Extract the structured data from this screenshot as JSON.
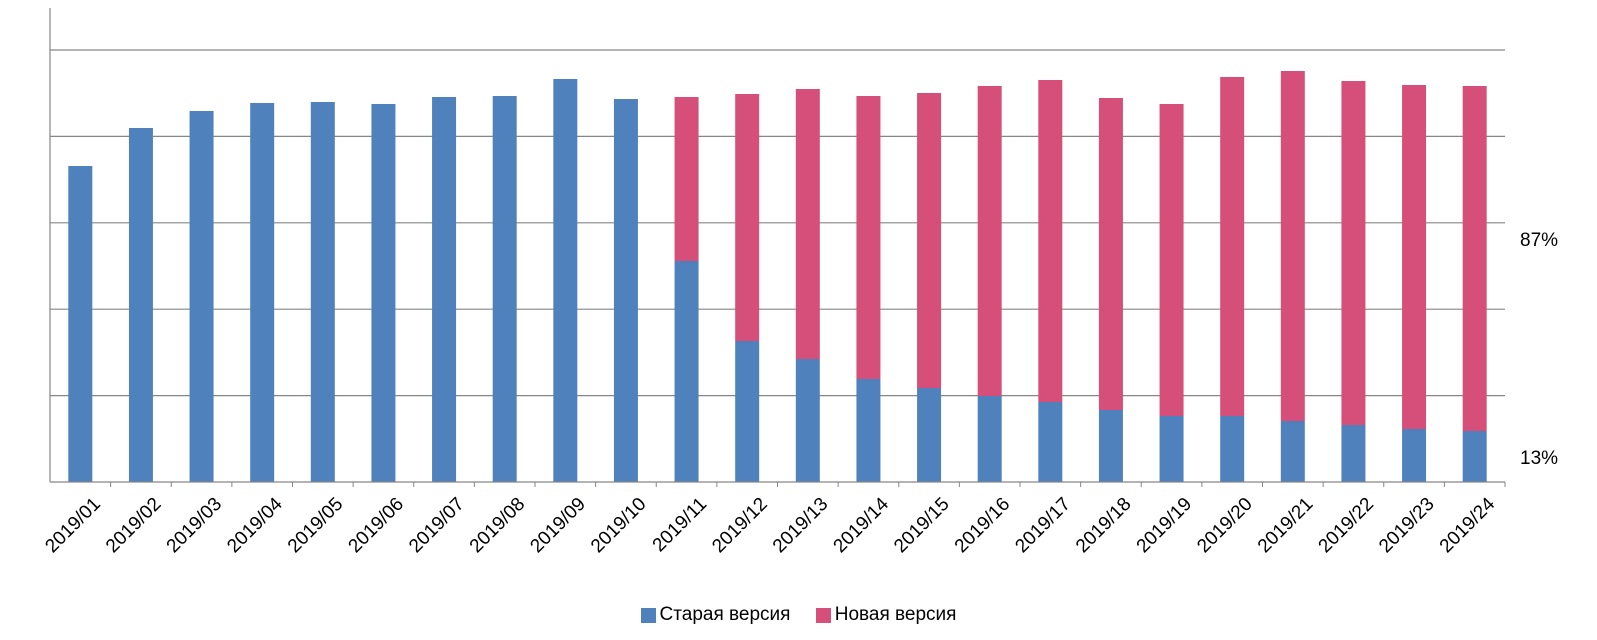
{
  "chart_data": {
    "type": "bar",
    "stacked": true,
    "categories": [
      "2019/01",
      "2019/02",
      "2019/03",
      "2019/04",
      "2019/05",
      "2019/06",
      "2019/07",
      "2019/08",
      "2019/09",
      "2019/10",
      "2019/11",
      "2019/12",
      "2019/13",
      "2019/14",
      "2019/15",
      "2019/16",
      "2019/17",
      "2019/18",
      "2019/19",
      "2019/20",
      "2019/21",
      "2019/22",
      "2019/23",
      "2019/24"
    ],
    "series": [
      {
        "name": "Старая версия",
        "color": "#4f81bd",
        "values": [
          316,
          354,
          371,
          379,
          380,
          378,
          385,
          386,
          403,
          383,
          221,
          141,
          123,
          103,
          94,
          86,
          80,
          72,
          66,
          66,
          61,
          57,
          53,
          51
        ]
      },
      {
        "name": "Новая версия",
        "color": "#d64f7a",
        "values": [
          0,
          0,
          0,
          0,
          0,
          0,
          0,
          0,
          0,
          0,
          164,
          247,
          270,
          283,
          295,
          310,
          322,
          312,
          312,
          339,
          350,
          344,
          344,
          345
        ]
      }
    ],
    "ylim": [
      0,
      432
    ],
    "y_gridlines": [
      0,
      86.4,
      172.8,
      259.2,
      345.6,
      432
    ],
    "y_tick_labels_shown": false,
    "annotations": [
      "87%",
      "13%"
    ],
    "legend_position": "bottom",
    "grid": true
  }
}
